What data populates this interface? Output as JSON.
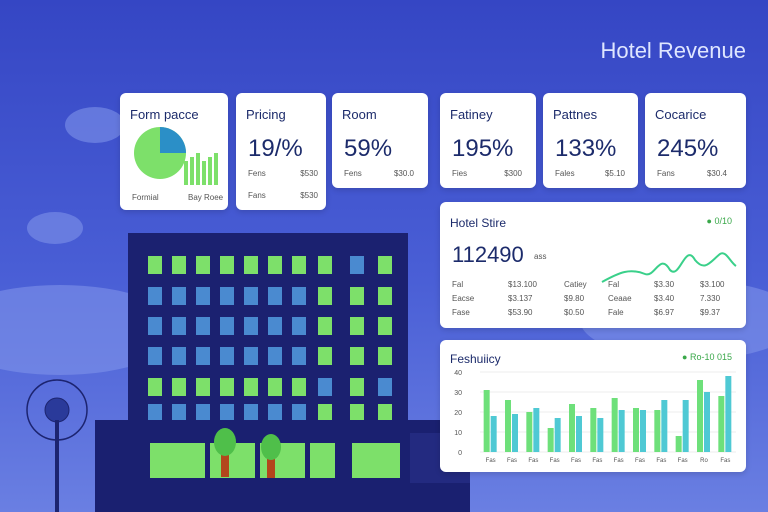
{
  "header": {
    "title": "Hotel Revenue"
  },
  "cards": [
    {
      "title": "Form pacce",
      "legend": [
        "Formial",
        "Bay Roee"
      ]
    },
    {
      "title": "Pricing",
      "value": "19/%",
      "rows": [
        [
          "Fens",
          "$530"
        ],
        [
          "Fans",
          "$530"
        ]
      ]
    },
    {
      "title": "Room",
      "value": "59%",
      "rows": [
        [
          "Fens",
          "$30.0"
        ]
      ]
    },
    {
      "title": "Fatiney",
      "value": "195%",
      "rows": [
        [
          "Fies",
          "$300"
        ]
      ]
    },
    {
      "title": "Pattnes",
      "value": "133%",
      "rows": [
        [
          "Fales",
          "$5.10"
        ]
      ]
    },
    {
      "title": "Cocarice",
      "value": "245%",
      "rows": [
        [
          "Fans",
          "$30.4"
        ]
      ]
    }
  ],
  "stats_panel": {
    "title": "Hotel Stire",
    "tag": "0/10",
    "value": "112490",
    "unit": "ass",
    "rows": [
      [
        "Fal",
        "$13.100",
        "Catiey"
      ],
      [
        "Eacse",
        "$3.137",
        "$9.80"
      ],
      [
        "Fase",
        "$53.90",
        "$0.50"
      ]
    ],
    "side_rows": [
      [
        "Fal",
        "$3.30",
        "$3.100"
      ],
      [
        "Ceaae",
        "$3.40",
        "7.330"
      ],
      [
        "Fale",
        "$6.97",
        "$9.37"
      ]
    ]
  },
  "bar_panel": {
    "title": "Feshuiicy",
    "tag": "Ro-10 015",
    "ylim": [
      0,
      40
    ],
    "yticks": [
      0,
      10,
      20,
      30,
      40
    ],
    "categories": [
      "Fas",
      "Fas",
      "Fas",
      "Fas",
      "Fas",
      "Fas",
      "Fas",
      "Fas",
      "Fas",
      "Fas",
      "Ro",
      "Fas"
    ],
    "series": [
      {
        "color": "#6ee07a",
        "values": [
          31,
          26,
          20,
          12,
          24,
          22,
          27,
          22,
          21,
          8,
          36,
          28
        ]
      },
      {
        "color": "#4fc9d4",
        "values": [
          18,
          19,
          22,
          17,
          18,
          17,
          21,
          21,
          26,
          26,
          30,
          38
        ]
      }
    ]
  }
}
